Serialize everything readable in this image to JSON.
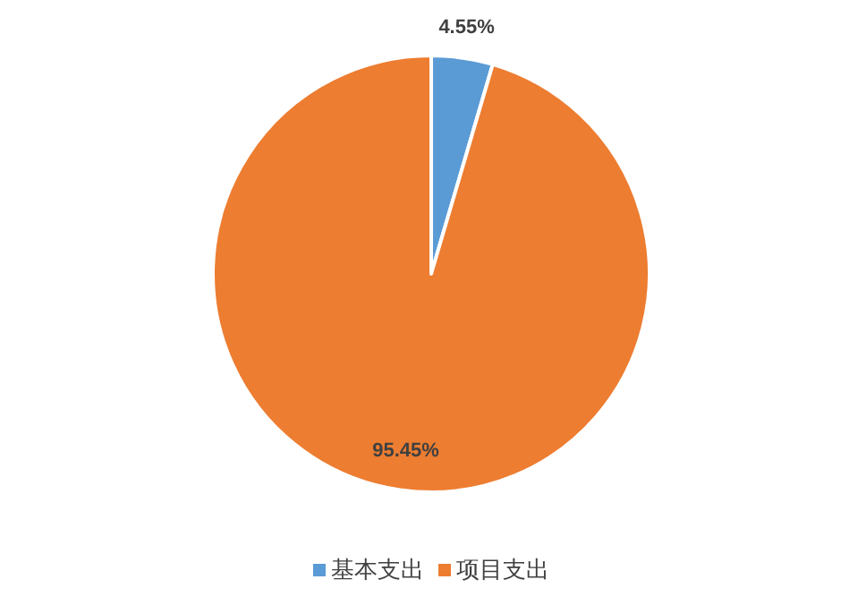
{
  "chart_data": {
    "type": "pie",
    "categories": [
      "基本支出",
      "项目支出"
    ],
    "values": [
      4.55,
      95.45
    ],
    "colors": [
      "#5b9bd5",
      "#ed7d31"
    ],
    "value_labels": [
      "4.55%",
      "95.45%"
    ],
    "legend": "bottom"
  }
}
